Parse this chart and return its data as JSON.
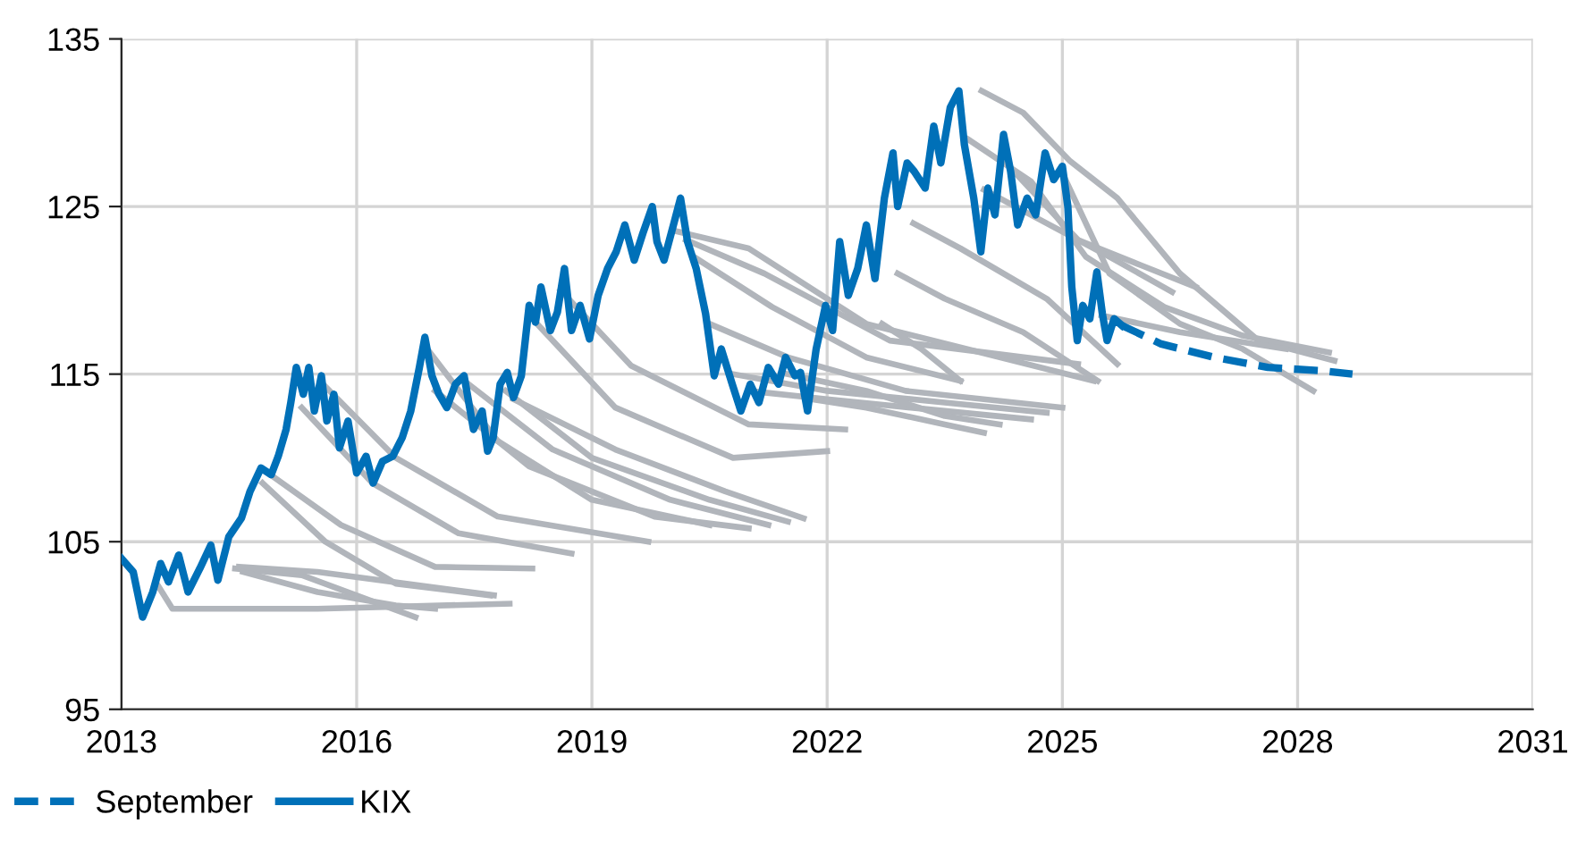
{
  "chart_data": {
    "type": "line",
    "xlim": [
      2013,
      2031
    ],
    "xticks": [
      2013,
      2016,
      2019,
      2022,
      2025,
      2028,
      2031
    ],
    "ylim": [
      95,
      135
    ],
    "yticks": [
      95,
      105,
      115,
      125,
      135
    ],
    "grid": true,
    "legend": "bottom left",
    "series": [
      {
        "color": "#b1b5bb",
        "x": [
          2013.45,
          2013.65,
          2015.5,
          2017.95
        ],
        "values": [
          102.5,
          101,
          101,
          101.3
        ]
      },
      {
        "color": "#b1b5bb",
        "x": [
          2014.45,
          2015.3,
          2016.75
        ],
        "values": [
          103.4,
          103,
          100.5
        ]
      },
      {
        "color": "#b1b5bb",
        "x": [
          2014.5,
          2015.5,
          2017.75
        ],
        "values": [
          103.5,
          103.2,
          101.8
        ]
      },
      {
        "color": "#b1b5bb",
        "x": [
          2014.55,
          2015.5,
          2016.5,
          2017.0
        ],
        "values": [
          103.2,
          102,
          101.2,
          101
        ]
      },
      {
        "color": "#b1b5bb",
        "x": [
          2014.8,
          2015.6,
          2016.5,
          2017.7
        ],
        "values": [
          108.5,
          105,
          102.5,
          101.8
        ]
      },
      {
        "color": "#b1b5bb",
        "x": [
          2014.9,
          2015.8,
          2017.0,
          2018.24
        ],
        "values": [
          109,
          106,
          103.5,
          103.4
        ]
      },
      {
        "color": "#b1b5bb",
        "x": [
          2015.3,
          2016.2,
          2017.3,
          2018.74
        ],
        "values": [
          113,
          108.5,
          105.5,
          104.3
        ]
      },
      {
        "color": "#b1b5bb",
        "x": [
          2015.55,
          2016.5,
          2017.8,
          2019.72
        ],
        "values": [
          114.5,
          110,
          106.5,
          105
        ]
      },
      {
        "color": "#b1b5bb",
        "x": [
          2016.9,
          2017.8,
          2019.0,
          2020.5
        ],
        "values": [
          116.5,
          111,
          107.5,
          106
        ]
      },
      {
        "color": "#b1b5bb",
        "x": [
          2017.0,
          2018.2,
          2019.8,
          2021.0
        ],
        "values": [
          114,
          109.5,
          106.5,
          105.8
        ]
      },
      {
        "color": "#b1b5bb",
        "x": [
          2017.4,
          2018.5,
          2020.0,
          2021.25
        ],
        "values": [
          114.5,
          110.5,
          107.5,
          106
        ]
      },
      {
        "color": "#b1b5bb",
        "x": [
          2017.9,
          2019.0,
          2020.5,
          2021.5
        ],
        "values": [
          114,
          110,
          107.5,
          106.2
        ]
      },
      {
        "color": "#b1b5bb",
        "x": [
          2018.0,
          2019.3,
          2020.7,
          2021.7
        ],
        "values": [
          113.5,
          110.5,
          108,
          106.4
        ]
      },
      {
        "color": "#b1b5bb",
        "x": [
          2018.3,
          2019.3,
          2020.8,
          2022.0
        ],
        "values": [
          118,
          113,
          110,
          110.4
        ]
      },
      {
        "color": "#b1b5bb",
        "x": [
          2018.6,
          2019.5,
          2021.0,
          2022.23
        ],
        "values": [
          120,
          115.5,
          112,
          111.7
        ]
      },
      {
        "color": "#b1b5bb",
        "x": [
          2020.1,
          2021.0,
          2022.5,
          2025.4
        ],
        "values": [
          123.5,
          122.5,
          118,
          114.6
        ]
      },
      {
        "color": "#b1b5bb",
        "x": [
          2020.2,
          2021.2,
          2022.8,
          2025.2
        ],
        "values": [
          123,
          121,
          117,
          115.6
        ]
      },
      {
        "color": "#b1b5bb",
        "x": [
          2020.3,
          2021.3,
          2022.5,
          2023.7
        ],
        "values": [
          122,
          119,
          116,
          114.6
        ]
      },
      {
        "color": "#b1b5bb",
        "x": [
          2020.5,
          2021.5,
          2023.0,
          2025.0
        ],
        "values": [
          118,
          116,
          114,
          113
        ]
      },
      {
        "color": "#b1b5bb",
        "x": [
          2020.8,
          2022.0,
          2023.5,
          2024.8
        ],
        "values": [
          115,
          114,
          113.3,
          112.7
        ]
      },
      {
        "color": "#b1b5bb",
        "x": [
          2021.0,
          2022.0,
          2023.5,
          2024.6
        ],
        "values": [
          114,
          113.5,
          112.8,
          112.3
        ]
      },
      {
        "color": "#b1b5bb",
        "x": [
          2021.5,
          2022.5,
          2023.5,
          2024.2
        ],
        "values": [
          115,
          114,
          112.5,
          112
        ]
      },
      {
        "color": "#b1b5bb",
        "x": [
          2021.8,
          2022.5,
          2023.5,
          2024.0
        ],
        "values": [
          113.5,
          113,
          112,
          111.5
        ]
      },
      {
        "color": "#b1b5bb",
        "x": [
          2023.97,
          2024.5,
          2025.1,
          2025.7,
          2026.5,
          2027.5,
          2028.47
        ],
        "values": [
          131.9,
          130.6,
          127.7,
          125.5,
          121,
          117,
          115.8
        ]
      },
      {
        "color": "#b1b5bb",
        "x": [
          2023.8,
          2024.6,
          2025.3,
          2026.3,
          2027.3,
          2028.4
        ],
        "values": [
          129,
          126.5,
          122,
          119,
          117.3,
          116.3
        ]
      },
      {
        "color": "#b1b5bb",
        "x": [
          2025.0,
          2025.6,
          2026.5,
          2027.3,
          2028.2
        ],
        "values": [
          127,
          121,
          118,
          116.5,
          114
        ]
      },
      {
        "color": "#b1b5bb",
        "x": [
          2024.3,
          2025.2,
          2026.0,
          2026.7
        ],
        "values": [
          127.5,
          123,
          121.5,
          120.2
        ]
      },
      {
        "color": "#b1b5bb",
        "x": [
          2024.0,
          2024.8,
          2025.6,
          2026.4
        ],
        "values": [
          126,
          124,
          122,
          119.9
        ]
      },
      {
        "color": "#b1b5bb",
        "x": [
          2023.1,
          2023.7,
          2024.8,
          2025.7
        ],
        "values": [
          124,
          122.5,
          119.5,
          115.6
        ]
      },
      {
        "color": "#b1b5bb",
        "x": [
          2022.9,
          2023.5,
          2024.5,
          2025.45
        ],
        "values": [
          121,
          119.5,
          117.5,
          114.6
        ]
      },
      {
        "color": "#b1b5bb",
        "x": [
          2022.7,
          2023.2,
          2023.7
        ],
        "values": [
          118,
          116.5,
          114.6
        ]
      },
      {
        "color": "#b1b5bb",
        "x": [
          2025.5,
          2026.5,
          2027.85
        ],
        "values": [
          118.5,
          117.5,
          116.5
        ]
      },
      {
        "name": "September",
        "color": "#0070b8",
        "line_style": "dashed",
        "x": [
          2025.76,
          2026.26,
          2026.94,
          2027.62,
          2028.31,
          2028.7
        ],
        "values": [
          117.9,
          116.8,
          116,
          115.4,
          115.2,
          115
        ]
      },
      {
        "name": "KIX",
        "color": "#0070b8",
        "line_style": "solid",
        "x": [
          2013.0,
          2013.15,
          2013.27,
          2013.4,
          2013.5,
          2013.6,
          2013.73,
          2013.85,
          2014.0,
          2014.14,
          2014.23,
          2014.37,
          2014.53,
          2014.64,
          2014.78,
          2014.91,
          2015.0,
          2015.1,
          2015.16,
          2015.23,
          2015.32,
          2015.39,
          2015.46,
          2015.55,
          2015.62,
          2015.71,
          2015.78,
          2015.89,
          2016.0,
          2016.12,
          2016.21,
          2016.33,
          2016.46,
          2016.58,
          2016.69,
          2016.8,
          2016.87,
          2016.96,
          2017.05,
          2017.15,
          2017.26,
          2017.37,
          2017.49,
          2017.6,
          2017.67,
          2017.74,
          2017.83,
          2017.92,
          2018.0,
          2018.1,
          2018.2,
          2018.28,
          2018.35,
          2018.47,
          2018.56,
          2018.65,
          2018.74,
          2018.85,
          2018.97,
          2019.08,
          2019.2,
          2019.31,
          2019.42,
          2019.54,
          2019.65,
          2019.77,
          2019.83,
          2019.92,
          2020.04,
          2020.13,
          2020.22,
          2020.33,
          2020.45,
          2020.56,
          2020.65,
          2020.79,
          2020.9,
          2021.02,
          2021.13,
          2021.25,
          2021.38,
          2021.47,
          2021.59,
          2021.66,
          2021.75,
          2021.86,
          2021.98,
          2022.07,
          2022.16,
          2022.27,
          2022.39,
          2022.5,
          2022.61,
          2022.73,
          2022.84,
          2022.9,
          2023.02,
          2023.11,
          2023.25,
          2023.36,
          2023.45,
          2023.57,
          2023.68,
          2023.75,
          2023.87,
          2023.96,
          2024.05,
          2024.14,
          2024.25,
          2024.34,
          2024.43,
          2024.55,
          2024.66,
          2024.78,
          2024.89,
          2025.0,
          2025.07,
          2025.12,
          2025.19,
          2025.26,
          2025.35,
          2025.44,
          2025.51,
          2025.57,
          2025.66,
          2025.76
        ],
        "values": [
          104,
          103.2,
          100.5,
          102,
          103.7,
          102.6,
          104.2,
          102,
          103.4,
          104.8,
          102.7,
          105.3,
          106.4,
          108,
          109.4,
          109,
          110.1,
          111.7,
          113.3,
          115.4,
          113.8,
          115.4,
          112.8,
          114.9,
          112.2,
          113.8,
          110.6,
          112.2,
          109.1,
          110.1,
          108.5,
          109.8,
          110.1,
          111.2,
          112.8,
          115.4,
          117.2,
          114.9,
          113.8,
          113,
          114.4,
          114.9,
          111.7,
          112.8,
          110.4,
          111.2,
          114.4,
          115.1,
          113.6,
          114.9,
          119.1,
          118.1,
          120.2,
          117.6,
          118.7,
          121.3,
          117.6,
          119.1,
          117.1,
          119.7,
          121.3,
          122.3,
          123.9,
          121.8,
          123.4,
          125,
          122.9,
          121.8,
          123.9,
          125.5,
          122.9,
          121.3,
          118.6,
          114.9,
          116.5,
          114.4,
          112.8,
          114.4,
          113.3,
          115.4,
          114.4,
          116,
          114.9,
          115.1,
          112.8,
          116.5,
          119.1,
          117.6,
          122.9,
          119.7,
          121.3,
          123.9,
          120.7,
          125.5,
          128.2,
          125,
          127.6,
          127.1,
          126.1,
          129.8,
          127.6,
          130.9,
          131.9,
          128.7,
          125.5,
          122.3,
          126.1,
          124.5,
          129.3,
          127.1,
          123.9,
          125.5,
          124.5,
          128.2,
          126.6,
          127.4,
          125,
          120.2,
          117,
          119.1,
          118.3,
          121.1,
          118.6,
          117,
          118.3,
          117.9
        ]
      }
    ]
  }
}
